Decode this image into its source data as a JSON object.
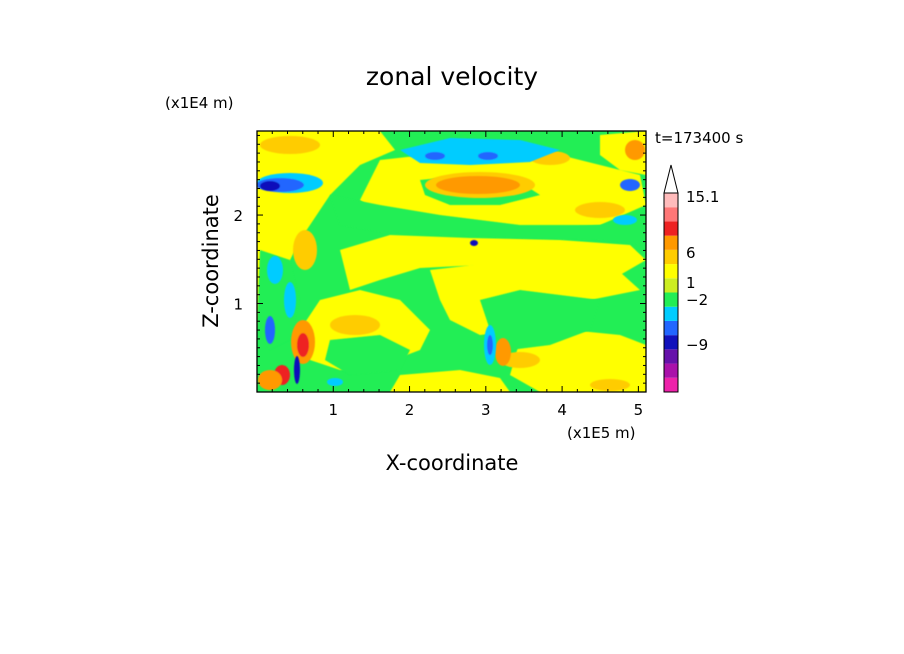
{
  "chart_data": {
    "type": "heatmap",
    "title": "zonal velocity",
    "xlabel": "X-coordinate",
    "ylabel": "Z-coordinate",
    "x_unit": "(x1E5 m)",
    "y_unit": "(x1E4 m)",
    "time_label": "t=173400 s",
    "xlim": [
      0,
      5.1
    ],
    "ylim": [
      0,
      2.95
    ],
    "x_ticks": [
      1,
      2,
      3,
      4,
      5
    ],
    "y_ticks": [
      1,
      2
    ],
    "colorbar": {
      "labels": [
        "15.1",
        "6",
        "1",
        "−2",
        "−9"
      ],
      "bands": [
        {
          "color": "#ee22aa",
          "range": [
            -15,
            -12
          ]
        },
        {
          "color": "#aa11aa",
          "range": [
            -12,
            -9
          ]
        },
        {
          "color": "#6611aa",
          "range": [
            -9,
            -6
          ]
        },
        {
          "color": "#1111bb",
          "range": [
            -6,
            -4
          ]
        },
        {
          "color": "#2266ff",
          "range": [
            -4,
            -2
          ]
        },
        {
          "color": "#00ccff",
          "range": [
            -2,
            -1
          ]
        },
        {
          "color": "#22ee55",
          "range": [
            -1,
            0
          ]
        },
        {
          "color": "#ccee22",
          "range": [
            0,
            1
          ]
        },
        {
          "color": "#ffff00",
          "range": [
            1,
            2
          ]
        },
        {
          "color": "#ffcc00",
          "range": [
            2,
            3
          ]
        },
        {
          "color": "#ff9900",
          "range": [
            3,
            6
          ]
        },
        {
          "color": "#ee2222",
          "range": [
            6,
            9
          ]
        },
        {
          "color": "#ff7777",
          "range": [
            9,
            12
          ]
        },
        {
          "color": "#ffbbbb",
          "range": [
            12,
            15.1
          ]
        }
      ]
    },
    "field_regions": [
      {
        "desc": "upper-left yellow band",
        "x": [
          0,
          1.2
        ],
        "z": [
          2.7,
          2.95
        ],
        "value": 2
      },
      {
        "desc": "upper-left blue jet",
        "x": [
          0,
          0.8
        ],
        "z": [
          2.3,
          2.5
        ],
        "value": -4
      },
      {
        "desc": "upper cyan band",
        "x": [
          2.1,
          3.6
        ],
        "z": [
          2.7,
          2.9
        ],
        "value": -1.5
      },
      {
        "desc": "central orange blob",
        "x": [
          2.0,
          3.3
        ],
        "z": [
          2.25,
          2.55
        ],
        "value": 3
      },
      {
        "desc": "middle green band",
        "x": [
          1.5,
          5.0
        ],
        "z": [
          1.3,
          2.0
        ],
        "value": -0.5
      },
      {
        "desc": "lower yellow region",
        "x": [
          2.5,
          4.5
        ],
        "z": [
          0.3,
          1.3
        ],
        "value": 1.5
      },
      {
        "desc": "left orange/red plume",
        "x": [
          0.3,
          0.8
        ],
        "z": [
          0.2,
          0.8
        ],
        "value": 5
      },
      {
        "desc": "centre plume",
        "x": [
          2.9,
          3.4
        ],
        "z": [
          0.1,
          1.0
        ],
        "value": -2
      }
    ]
  }
}
